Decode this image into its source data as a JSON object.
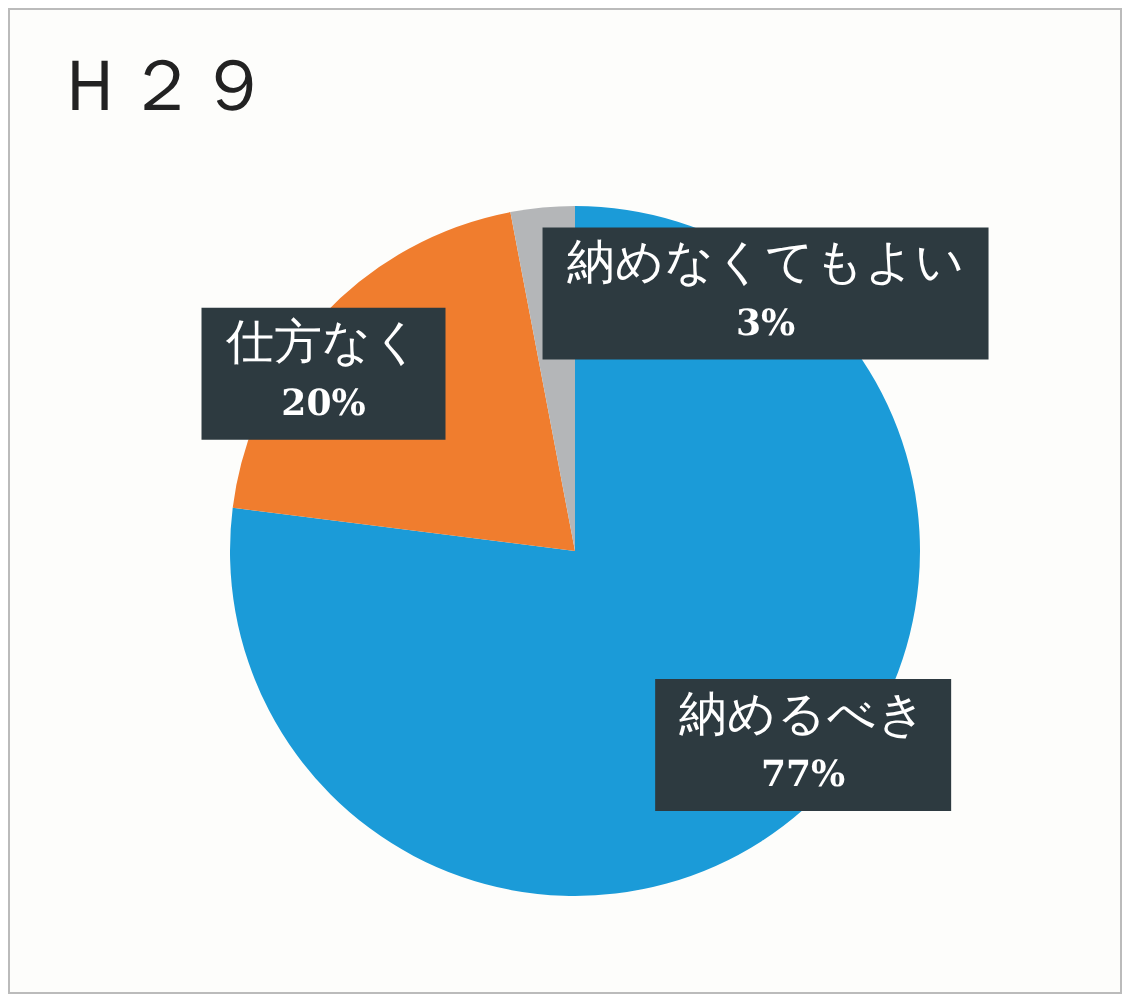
{
  "chart_data": {
    "type": "pie",
    "title": "Ｈ２９",
    "categories": [
      "納めるべき",
      "仕方なく",
      "納めなくてもよい"
    ],
    "values": [
      77,
      20,
      3
    ],
    "colors": [
      "#1b9bd8",
      "#f07d2e",
      "#b4b6b8"
    ],
    "value_labels": [
      "77%",
      "20%",
      "3%"
    ],
    "legend": false
  }
}
